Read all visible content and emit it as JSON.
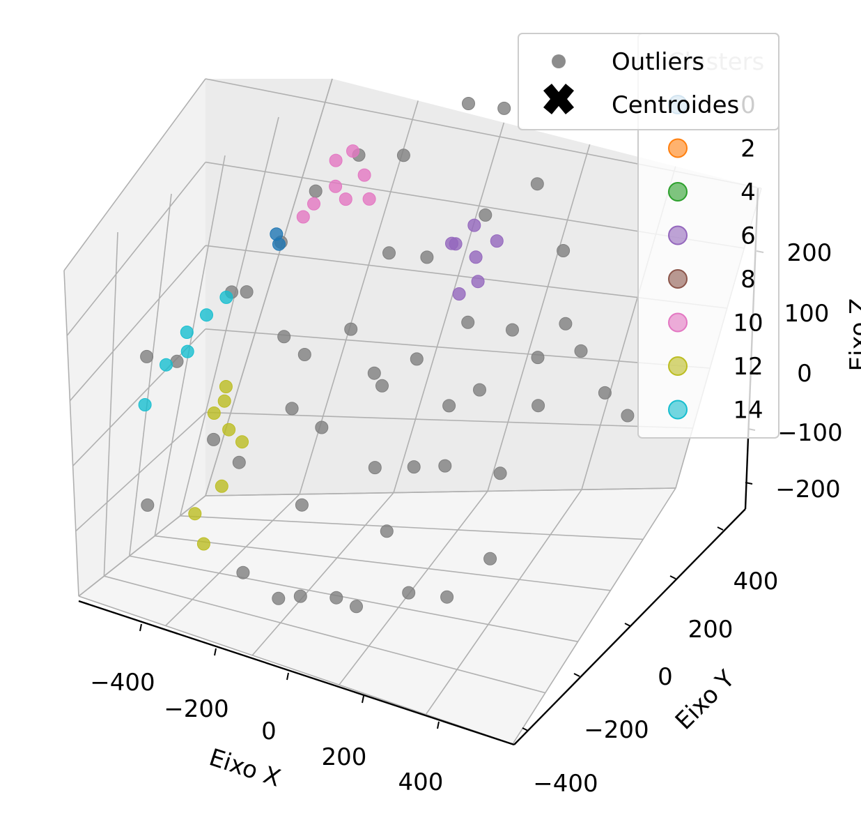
{
  "chart_data": {
    "type": "scatter",
    "projection": "3d",
    "xlabel": "Eixo X",
    "ylabel": "Eixo Y",
    "zlabel": "Eixo Z",
    "xlim": [
      -500,
      500
    ],
    "ylim": [
      -500,
      500
    ],
    "zlim": [
      -250,
      250
    ],
    "x_ticks": [
      "−400",
      "−200",
      "0",
      "200",
      "400"
    ],
    "y_ticks": [
      "−400",
      "−200",
      "0",
      "200",
      "400"
    ],
    "z_ticks": [
      "−200",
      "−100",
      "0",
      "100",
      "200"
    ],
    "grid": true,
    "legends": [
      {
        "title": "Clusters",
        "placement": "right",
        "entries": [
          {
            "label": "0",
            "color": "#1f77b4"
          },
          {
            "label": "2",
            "color": "#ff7f0e"
          },
          {
            "label": "4",
            "color": "#2ca02c"
          },
          {
            "label": "6",
            "color": "#9467bd"
          },
          {
            "label": "8",
            "color": "#8c564b"
          },
          {
            "label": "10",
            "color": "#e377c2"
          },
          {
            "label": "12",
            "color": "#bcbd22"
          },
          {
            "label": "14",
            "color": "#17becf"
          }
        ]
      },
      {
        "placement": "top-right",
        "entries": [
          {
            "label": "Outliers",
            "color": "#808080",
            "marker": "circle"
          },
          {
            "label": "Centroides",
            "color": "#000000",
            "marker": "X"
          }
        ]
      }
    ],
    "series": [
      {
        "name": "Outliers",
        "color": "#808080",
        "points": [
          [
            -420,
            -280,
            -150
          ],
          [
            -350,
            -380,
            60
          ],
          [
            -440,
            -300,
            40
          ],
          [
            -300,
            -160,
            120
          ],
          [
            -250,
            -400,
            -20
          ],
          [
            -180,
            -340,
            -190
          ],
          [
            -120,
            -260,
            -230
          ],
          [
            -60,
            -300,
            -210
          ],
          [
            20,
            -300,
            -200
          ],
          [
            60,
            -280,
            -210
          ],
          [
            150,
            -200,
            -200
          ],
          [
            220,
            -150,
            -210
          ],
          [
            300,
            -120,
            -160
          ],
          [
            320,
            80,
            -20
          ],
          [
            380,
            160,
            30
          ],
          [
            420,
            220,
            -40
          ],
          [
            460,
            260,
            -80
          ],
          [
            300,
            300,
            20
          ],
          [
            260,
            380,
            90
          ],
          [
            200,
            360,
            180
          ],
          [
            100,
            420,
            260
          ],
          [
            40,
            360,
            280
          ],
          [
            -80,
            320,
            220
          ],
          [
            -160,
            260,
            230
          ],
          [
            -220,
            160,
            200
          ],
          [
            -260,
            60,
            150
          ],
          [
            -300,
            -40,
            100
          ],
          [
            -200,
            -80,
            60
          ],
          [
            -120,
            -20,
            -60
          ],
          [
            0,
            0,
            0
          ],
          [
            60,
            40,
            30
          ],
          [
            100,
            -60,
            -80
          ],
          [
            160,
            60,
            80
          ],
          [
            220,
            -20,
            20
          ],
          [
            -40,
            120,
            140
          ],
          [
            -100,
            -200,
            -120
          ],
          [
            80,
            -160,
            -140
          ],
          [
            180,
            -100,
            -60
          ],
          [
            240,
            120,
            60
          ],
          [
            -160,
            -120,
            -20
          ],
          [
            20,
            200,
            120
          ],
          [
            140,
            200,
            180
          ],
          [
            -60,
            -60,
            80
          ],
          [
            260,
            40,
            -100
          ],
          [
            -240,
            -220,
            -80
          ],
          [
            330,
            20,
            60
          ],
          [
            10,
            -100,
            40
          ],
          [
            -20,
            60,
            -120
          ],
          [
            120,
            100,
            -40
          ],
          [
            -180,
            20,
            20
          ]
        ]
      },
      {
        "name": "10",
        "color": "#e377c2",
        "points": [
          [
            -200,
            80,
            200
          ],
          [
            -150,
            60,
            230
          ],
          [
            -100,
            100,
            240
          ],
          [
            -170,
            120,
            250
          ],
          [
            -120,
            40,
            220
          ],
          [
            -80,
            80,
            215
          ],
          [
            -210,
            40,
            190
          ],
          [
            -140,
            140,
            260
          ]
        ]
      },
      {
        "name": "6",
        "color": "#9467bd",
        "points": [
          [
            80,
            200,
            140
          ],
          [
            120,
            220,
            120
          ],
          [
            100,
            260,
            150
          ],
          [
            140,
            180,
            100
          ],
          [
            60,
            240,
            130
          ],
          [
            110,
            150,
            90
          ],
          [
            160,
            230,
            140
          ]
        ]
      },
      {
        "name": "12",
        "color": "#bcbd22",
        "points": [
          [
            -260,
            -300,
            10
          ],
          [
            -240,
            -320,
            -20
          ],
          [
            -270,
            -260,
            20
          ],
          [
            -250,
            -420,
            -150
          ],
          [
            -280,
            -400,
            -120
          ],
          [
            -230,
            -380,
            -80
          ],
          [
            -270,
            -340,
            0
          ],
          [
            -220,
            -280,
            -40
          ]
        ]
      },
      {
        "name": "14",
        "color": "#17becf",
        "points": [
          [
            -330,
            -240,
            100
          ],
          [
            -360,
            -280,
            80
          ],
          [
            -390,
            -320,
            40
          ],
          [
            -300,
            -200,
            120
          ],
          [
            -420,
            -360,
            -10
          ],
          [
            -350,
            -300,
            60
          ]
        ]
      },
      {
        "name": "0",
        "color": "#1f77b4",
        "points": [
          [
            -220,
            -100,
            180
          ],
          [
            -230,
            -90,
            190
          ]
        ]
      }
    ]
  }
}
